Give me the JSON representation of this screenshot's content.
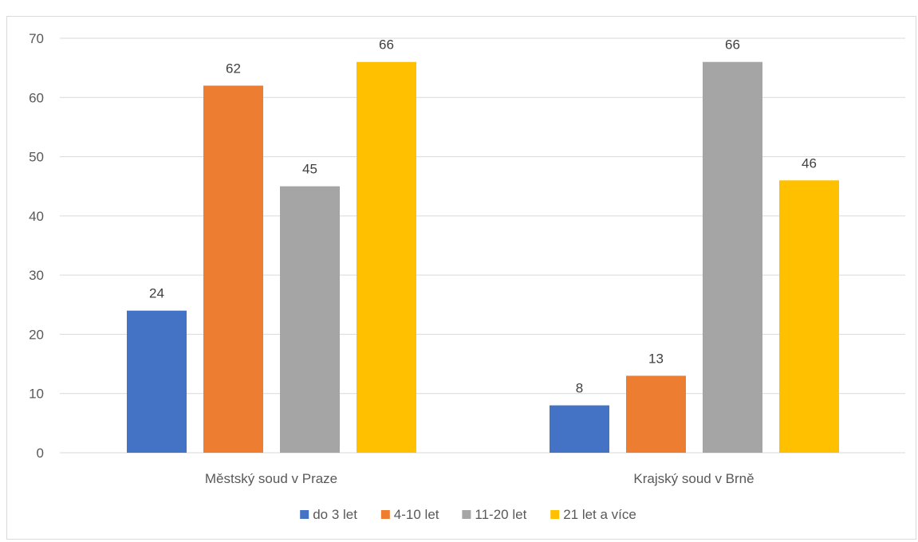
{
  "chart_data": {
    "type": "bar",
    "categories": [
      "Městský soud v Praze",
      "Krajský soud v Brně"
    ],
    "series": [
      {
        "name": "do 3 let",
        "values": [
          24,
          8
        ],
        "color": "#4472C4"
      },
      {
        "name": "4-10 let",
        "values": [
          62,
          13
        ],
        "color": "#ED7D31"
      },
      {
        "name": "11-20 let",
        "values": [
          45,
          66
        ],
        "color": "#A5A5A5"
      },
      {
        "name": "21 let a více",
        "values": [
          66,
          46
        ],
        "color": "#FFC000"
      }
    ],
    "title": "",
    "xlabel": "",
    "ylabel": "",
    "ylim": [
      0,
      70
    ],
    "yticks": [
      0,
      10,
      20,
      30,
      40,
      50,
      60,
      70
    ],
    "grid": true,
    "data_labels": true,
    "legend_position": "bottom",
    "colors": {
      "gridline": "#d9d9d9",
      "axis_text": "#595959",
      "data_label_text": "#404040"
    }
  }
}
